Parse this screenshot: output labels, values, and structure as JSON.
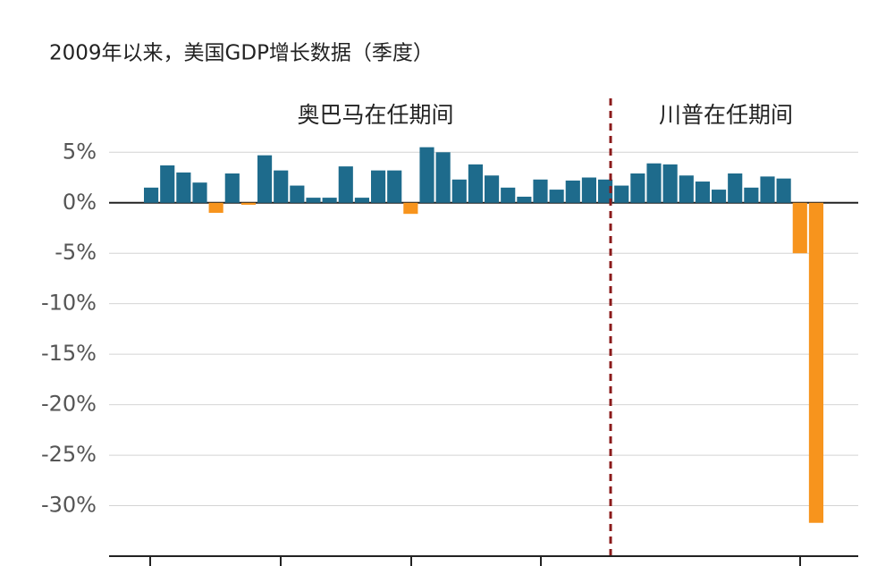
{
  "chart_data": {
    "type": "bar",
    "title": "2009年以来，美国GDP增长数据（季度）",
    "annotations": [
      "奥巴马在任期间",
      "川普在任期间"
    ],
    "categories": [
      null,
      null,
      null,
      null,
      null,
      null,
      null,
      null,
      null,
      null,
      null,
      null,
      null,
      null,
      null,
      null,
      null,
      null,
      null,
      null,
      null,
      null,
      null,
      null,
      null,
      null,
      null,
      null,
      null,
      null,
      null,
      null,
      null,
      null,
      null,
      null,
      null,
      null,
      null,
      null,
      null,
      null
    ],
    "values": [
      1.5,
      3.7,
      3.0,
      2.0,
      -1.0,
      2.9,
      -0.2,
      4.7,
      3.2,
      1.7,
      0.5,
      0.5,
      3.6,
      0.5,
      3.2,
      3.2,
      -1.1,
      5.5,
      5.0,
      2.3,
      3.8,
      2.7,
      1.5,
      0.6,
      2.3,
      1.3,
      2.2,
      2.5,
      2.3,
      1.7,
      2.9,
      3.9,
      3.8,
      2.7,
      2.1,
      1.3,
      2.9,
      1.5,
      2.6,
      2.4,
      -5.0,
      -31.7
    ],
    "positive_color": "#1e6b8c",
    "negative_color": "#f7941d",
    "ylim": [
      -35,
      6
    ],
    "yticks": [
      {
        "value": 5,
        "label": "5%"
      },
      {
        "value": 0,
        "label": "0%"
      },
      {
        "value": -5,
        "label": "-5%"
      },
      {
        "value": -10,
        "label": "-10%"
      },
      {
        "value": -15,
        "label": "-15%"
      },
      {
        "value": -20,
        "label": "-20%"
      },
      {
        "value": -25,
        "label": "-25%"
      },
      {
        "value": -30,
        "label": "-30%"
      }
    ],
    "grid": true
  }
}
